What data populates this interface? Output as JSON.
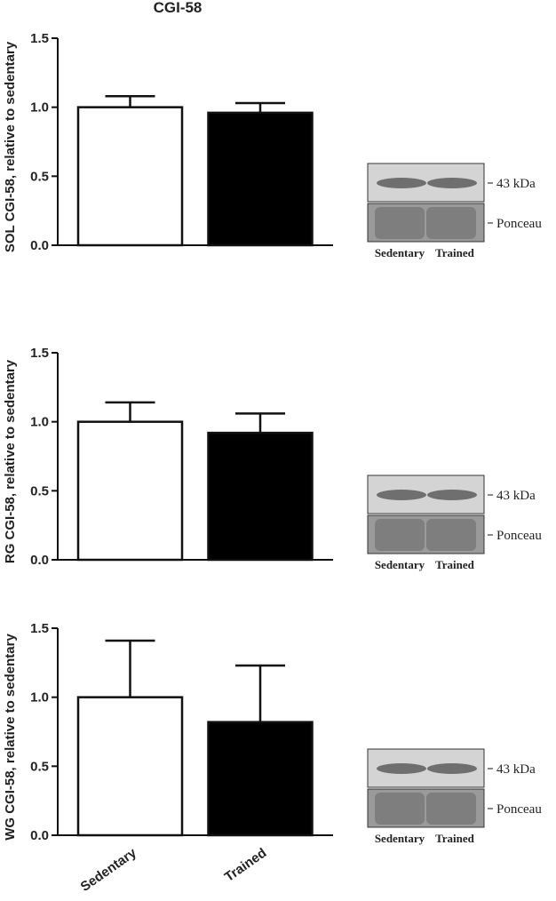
{
  "chart_data": [
    {
      "type": "bar",
      "title": "CGI-58",
      "ylabel": "SOL CGI-58, relative to sedentary",
      "categories": [
        null,
        null
      ],
      "values": [
        1.0,
        0.96
      ],
      "errors": [
        0.08,
        0.07
      ],
      "colors": [
        "#ffffff",
        "#000000"
      ],
      "ylim": [
        0,
        1.5
      ],
      "yticks": [
        {
          "value": 0,
          "label": "0.0"
        },
        {
          "value": 0.5,
          "label": "0.5"
        },
        {
          "value": 1,
          "label": "1.0"
        },
        {
          "value": 1.5,
          "label": "1.5"
        }
      ],
      "blot_band_label": "43 kDa",
      "blot_loading_label": "Ponceau",
      "blot_lanes": [
        "Sedentary",
        "Trained"
      ]
    },
    {
      "type": "bar",
      "ylabel": "RG CGI-58, relative to sedentary",
      "categories": [
        null,
        null
      ],
      "values": [
        1.0,
        0.92
      ],
      "errors": [
        0.14,
        0.14
      ],
      "colors": [
        "#ffffff",
        "#000000"
      ],
      "ylim": [
        0,
        1.5
      ],
      "yticks": [
        {
          "value": 0,
          "label": "0.0"
        },
        {
          "value": 0.5,
          "label": "0.5"
        },
        {
          "value": 1,
          "label": "1.0"
        },
        {
          "value": 1.5,
          "label": "1.5"
        }
      ],
      "blot_band_label": "43 kDa",
      "blot_loading_label": "Ponceau",
      "blot_lanes": [
        "Sedentary",
        "Trained"
      ]
    },
    {
      "type": "bar",
      "ylabel": "WG CGI-58, relative to sedentary",
      "categories": [
        "Sedentary",
        "Trained"
      ],
      "values": [
        1.0,
        0.82
      ],
      "errors": [
        0.41,
        0.41
      ],
      "colors": [
        "#ffffff",
        "#000000"
      ],
      "ylim": [
        0,
        1.5
      ],
      "yticks": [
        {
          "value": 0,
          "label": "0.0"
        },
        {
          "value": 0.5,
          "label": "0.5"
        },
        {
          "value": 1,
          "label": "1.0"
        },
        {
          "value": 1.5,
          "label": "1.5"
        }
      ],
      "blot_band_label": "43 kDa",
      "blot_loading_label": "Ponceau",
      "blot_lanes": [
        "Sedentary",
        "Trained"
      ]
    }
  ]
}
